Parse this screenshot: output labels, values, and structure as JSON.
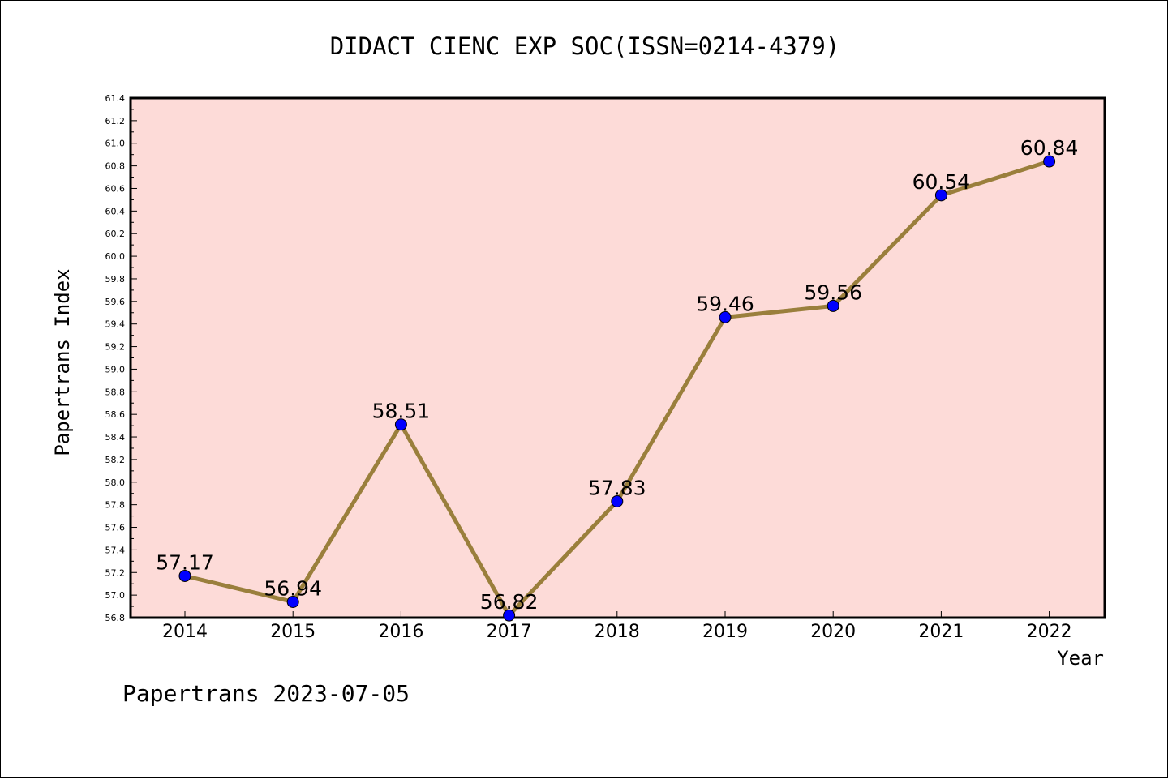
{
  "chart_data": {
    "type": "line",
    "title": "DIDACT CIENC EXP SOC(ISSN=0214-4379)",
    "xlabel": "Year",
    "ylabel": "Papertrans Index",
    "categories": [
      "2014",
      "2015",
      "2016",
      "2017",
      "2018",
      "2019",
      "2020",
      "2021",
      "2022"
    ],
    "series": [
      {
        "values": [
          57.17,
          56.94,
          58.51,
          56.82,
          57.83,
          59.46,
          59.56,
          60.54,
          60.84
        ],
        "labels": [
          "57.17",
          "56.94",
          "58.51",
          "56.82",
          "57.83",
          "59.46",
          "59.56",
          "60.54",
          "60.84"
        ]
      }
    ],
    "ylim": [
      56.8,
      61.4
    ],
    "yticks": [
      "56.8",
      "57.0",
      "57.2",
      "57.4",
      "57.6",
      "57.8",
      "58.0",
      "58.2",
      "58.4",
      "58.6",
      "58.8",
      "59.0",
      "59.2",
      "59.4",
      "59.6",
      "59.8",
      "60.0",
      "60.2",
      "60.4",
      "60.6",
      "60.8",
      "61.0",
      "61.2",
      "61.4"
    ],
    "grid": false,
    "colors": {
      "plot_background": "#fddbd8",
      "line": "#9a7f3c",
      "marker": "#0000ff"
    }
  },
  "footer": {
    "text": "Papertrans 2023-07-05"
  }
}
